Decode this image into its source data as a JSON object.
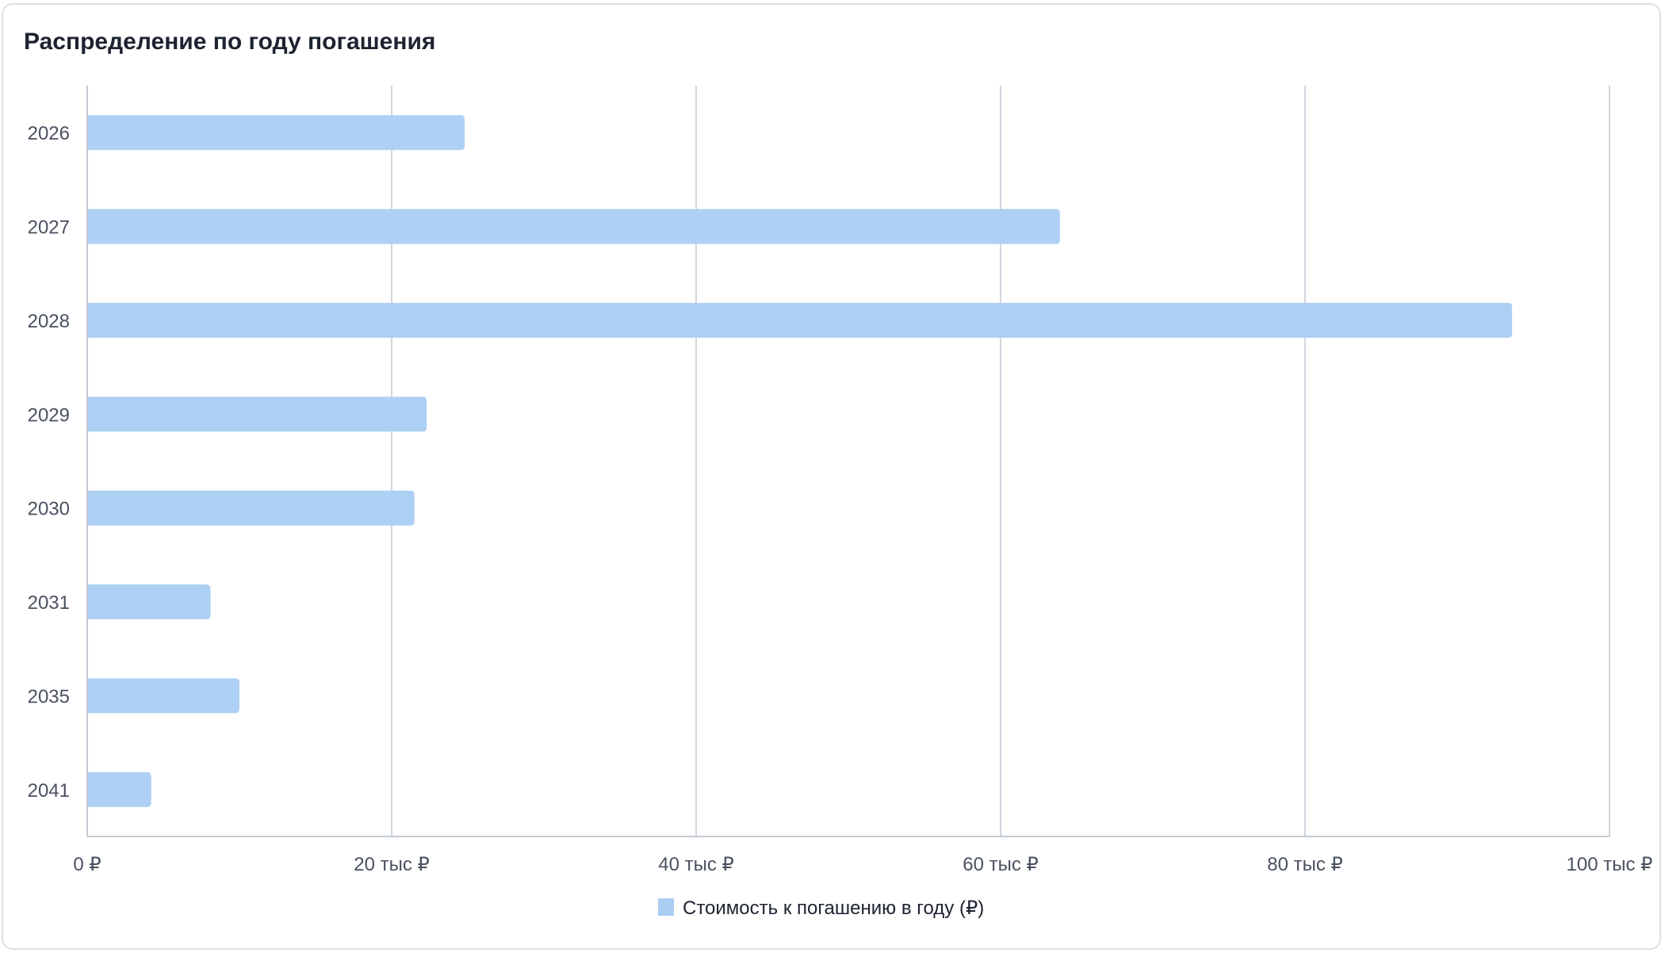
{
  "chart_data": {
    "type": "bar",
    "orientation": "horizontal",
    "title": "Распределение по году погашения",
    "categories": [
      "2026",
      "2027",
      "2028",
      "2029",
      "2030",
      "2031",
      "2035",
      "2041"
    ],
    "series": [
      {
        "name": "Стоимость к погашению в году (₽)",
        "color": "#aacdf3",
        "values": [
          24800,
          63900,
          93600,
          22300,
          21500,
          8100,
          10000,
          4200
        ]
      }
    ],
    "xlim": [
      0,
      100000
    ],
    "x_ticks": [
      0,
      20000,
      40000,
      60000,
      80000,
      100000
    ],
    "x_tick_labels": [
      "0 ₽",
      "20 тыс ₽",
      "40 тыс ₽",
      "60 тыс ₽",
      "80 тыс ₽",
      "100 тыс ₽"
    ],
    "grid": true,
    "legend_position": "bottom"
  }
}
